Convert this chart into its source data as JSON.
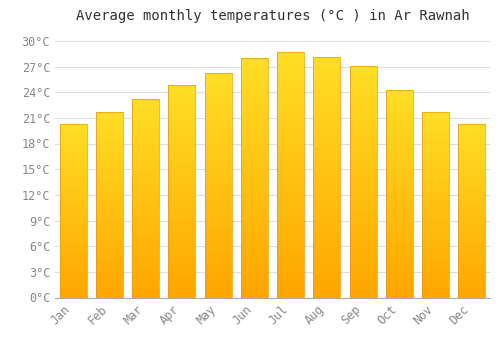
{
  "title": "Average monthly temperatures (°C ) in Ar Rawnah",
  "months": [
    "Jan",
    "Feb",
    "Mar",
    "Apr",
    "May",
    "Jun",
    "Jul",
    "Aug",
    "Sep",
    "Oct",
    "Nov",
    "Dec"
  ],
  "temperatures": [
    20.3,
    21.7,
    23.2,
    24.8,
    26.2,
    28.0,
    28.7,
    28.1,
    27.1,
    24.2,
    21.7,
    20.3
  ],
  "bar_color_top": "#FFB700",
  "bar_color_bottom": "#FFA500",
  "background_color": "#FFFFFF",
  "grid_color": "#DDDDDD",
  "ytick_values": [
    0,
    3,
    6,
    9,
    12,
    15,
    18,
    21,
    24,
    27,
    30
  ],
  "ylim": [
    0,
    31.5
  ],
  "title_fontsize": 10,
  "tick_fontsize": 8.5,
  "font_family": "monospace"
}
